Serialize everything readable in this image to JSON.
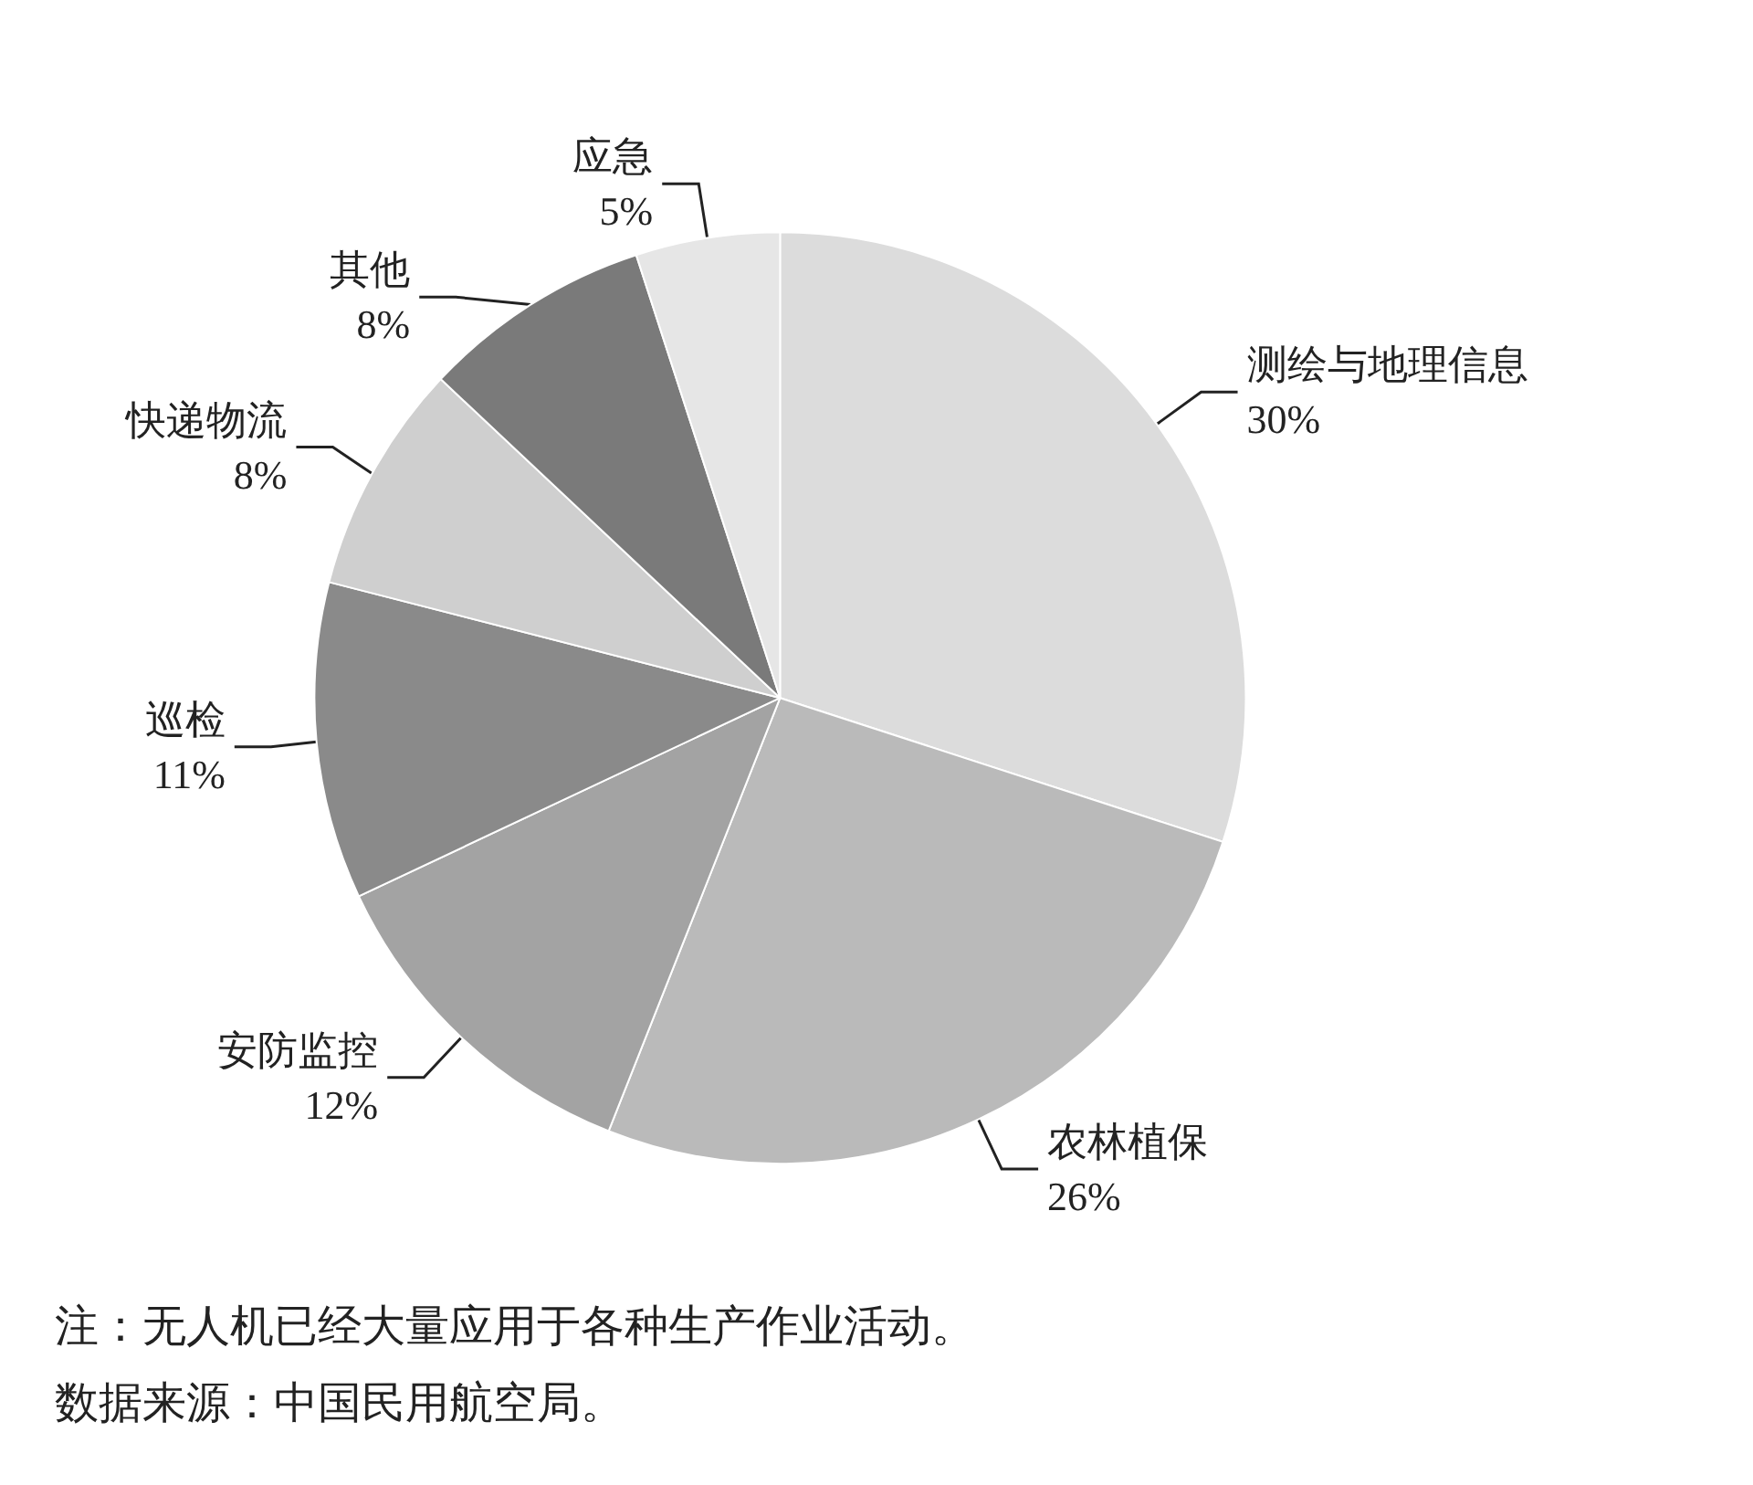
{
  "chart_data": {
    "type": "pie",
    "categories": [
      "测绘与地理信息",
      "农林植保",
      "安防监控",
      "巡检",
      "快递物流",
      "其他",
      "应急"
    ],
    "values": [
      30,
      26,
      12,
      11,
      8,
      8,
      5
    ],
    "value_labels": [
      "30%",
      "26%",
      "12%",
      "11%",
      "8%",
      "8%",
      "5%"
    ],
    "colors": [
      "#dcdcdc",
      "#bababa",
      "#a3a3a3",
      "#8a8a8a",
      "#cfcfcf",
      "#7a7a7a",
      "#e6e6e6"
    ],
    "legend": false,
    "annotations": [
      "注：无人机已经大量应用于各种生产作业活动。",
      "数据来源：中国民用航空局。"
    ]
  }
}
